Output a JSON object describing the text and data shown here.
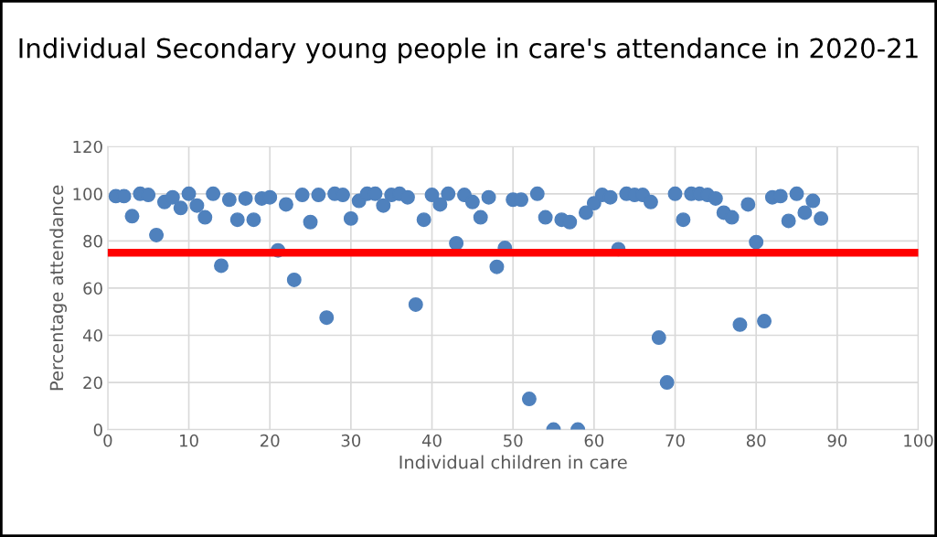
{
  "chart_data": {
    "type": "scatter",
    "title": "Individual Secondary young people in care's attendance in 2020-21",
    "xlabel": "Individual children in care",
    "ylabel": "Percentage attendance",
    "x": [
      1,
      2,
      3,
      4,
      5,
      6,
      7,
      8,
      9,
      10,
      11,
      12,
      13,
      14,
      15,
      16,
      17,
      18,
      19,
      20,
      21,
      22,
      23,
      24,
      25,
      26,
      27,
      28,
      29,
      30,
      31,
      32,
      33,
      34,
      35,
      36,
      37,
      38,
      39,
      40,
      41,
      42,
      43,
      44,
      45,
      46,
      47,
      48,
      49,
      50,
      51,
      52,
      53,
      54,
      55,
      56,
      57,
      58,
      59,
      60,
      61,
      62,
      63,
      64,
      65,
      66,
      67,
      68,
      69,
      70,
      71,
      72,
      73,
      74,
      75,
      76,
      77,
      78,
      79,
      80,
      81,
      82,
      83,
      84,
      85,
      86,
      87,
      88
    ],
    "series": [
      {
        "color": "#4f81bd",
        "values": [
          99,
          99,
          90.5,
          100,
          99.5,
          82.5,
          96.5,
          98.5,
          94,
          100,
          95,
          90,
          100,
          69.5,
          97.5,
          89,
          98,
          89,
          98,
          98.5,
          76,
          95.5,
          63.5,
          99.5,
          88,
          99.5,
          47.5,
          100,
          99.5,
          89.5,
          97,
          100,
          100,
          95,
          99.5,
          100,
          98.5,
          53,
          89,
          99.5,
          95.5,
          100,
          79,
          99.5,
          96.5,
          90,
          98.5,
          69,
          77,
          97.5,
          97.5,
          13,
          100,
          90,
          0,
          89,
          88,
          0,
          92,
          96,
          99.5,
          98.5,
          76.5,
          100,
          99.5,
          99.5,
          96.5,
          39,
          20,
          100,
          89,
          100,
          100,
          99.5,
          98,
          92,
          90,
          44.5,
          95.5,
          79.5,
          46,
          98.5,
          99,
          88.5,
          100,
          92,
          97,
          89.5
        ]
      }
    ],
    "ref_lines": [
      {
        "axis": "y",
        "value": 75,
        "color": "#ff0000"
      }
    ],
    "xlim": [
      0,
      100
    ],
    "xticks": [
      0,
      10,
      20,
      30,
      40,
      50,
      60,
      70,
      80,
      90,
      100
    ],
    "ylim": [
      0,
      120
    ],
    "yticks": [
      0,
      20,
      40,
      60,
      80,
      100,
      120
    ],
    "grid": true,
    "marker": "circle"
  }
}
